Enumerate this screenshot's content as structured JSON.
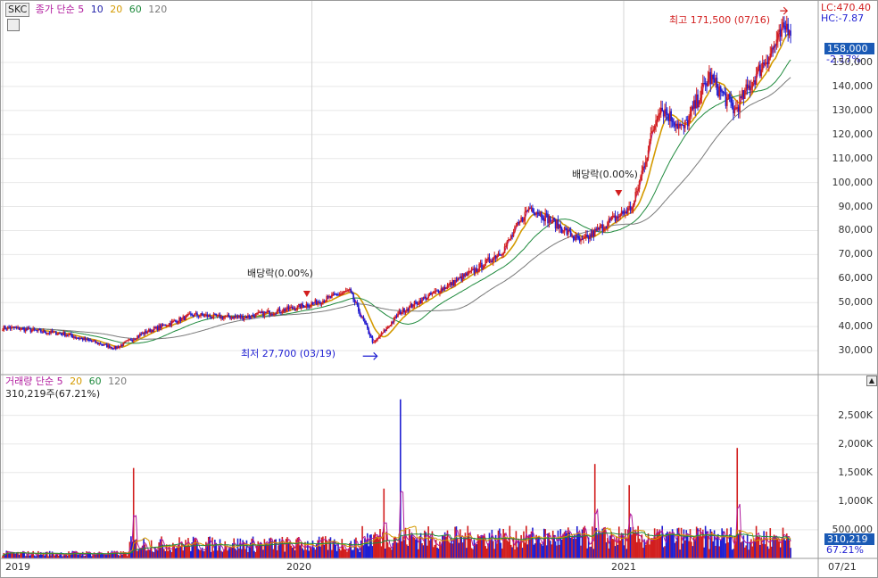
{
  "chart_data": [
    {
      "type": "candlestick",
      "ticker": "SKC",
      "ma_legend": {
        "prefix": "종가 단순",
        "periods": [
          "5",
          "10",
          "20",
          "60",
          "120"
        ],
        "colors": [
          "#b0199d",
          "#1f1fa8",
          "#d49a00",
          "#1f8a3d",
          "#7a7a7a"
        ]
      },
      "ylim": [
        20000,
        176000
      ],
      "y_ticks": [
        "150,000",
        "140,000",
        "130,000",
        "120,000",
        "110,000",
        "100,000",
        "90,000",
        "80,000",
        "70,000",
        "60,000",
        "50,000",
        "40,000",
        "30,000"
      ],
      "y_tick_values": [
        150000,
        140000,
        130000,
        120000,
        110000,
        100000,
        90000,
        80000,
        70000,
        60000,
        50000,
        40000,
        30000
      ],
      "x_labels": [
        "2019",
        "2020",
        "2021"
      ],
      "x_label_dates": [
        "2019-01-02",
        "2020-01-02",
        "2021-01-04"
      ],
      "last_date_label": "07/21",
      "close_series": {
        "dates": [
          "2019-01",
          "2019-02",
          "2019-03",
          "2019-04",
          "2019-05",
          "2019-06",
          "2019-07",
          "2019-08",
          "2019-09",
          "2019-10",
          "2019-11",
          "2019-12",
          "2020-01",
          "2020-02",
          "2020-03",
          "2020-04",
          "2020-05",
          "2020-06",
          "2020-07",
          "2020-08",
          "2020-09",
          "2020-10",
          "2020-11",
          "2020-12",
          "2021-01",
          "2021-02",
          "2021-03",
          "2021-04",
          "2021-05",
          "2021-06",
          "2021-07"
        ],
        "values": [
          39500,
          38000,
          37000,
          34000,
          31000,
          37000,
          41000,
          45000,
          44000,
          44000,
          46000,
          48000,
          51000,
          55000,
          33000,
          46000,
          52000,
          58000,
          64000,
          72000,
          90000,
          83000,
          75000,
          83000,
          90000,
          132000,
          122000,
          144000,
          130000,
          148000,
          165000
        ]
      },
      "annotations": {
        "high": {
          "text": "최고 171,500 (07/16)",
          "value": 171500,
          "date": "2021-07-16"
        },
        "low": {
          "text": "최저 27,700 (03/19)",
          "value": 27700,
          "date": "2020-03-19"
        },
        "dividends": [
          {
            "text": "배당락(0.00%)",
            "date": "2019-12-27"
          },
          {
            "text": "배당락(0.00%)",
            "date": "2020-12-29"
          }
        ]
      },
      "side_info": {
        "lc": "LC:470.40",
        "hc": "HC:-7.87",
        "last_price": "158,000",
        "change": "-2.17%"
      },
      "colors": {
        "up": "#d21f1f",
        "down": "#1f1fd2",
        "badge": "#1a5ab5",
        "annotation_red": "#d21f1f",
        "annotation_blue": "#1f1fd2"
      }
    },
    {
      "type": "bar",
      "legend": {
        "prefix": "거래량 단순",
        "periods": [
          "5",
          "20",
          "60",
          "120"
        ],
        "colors": [
          "#b0199d",
          "#d49a00",
          "#1f8a3d",
          "#7a7a7a"
        ]
      },
      "current_text": "310,219주(67.21%)",
      "ylim": [
        0,
        2900000
      ],
      "y_ticks": [
        "2,500K",
        "2,000K",
        "1,500K",
        "1,000K",
        "500,000"
      ],
      "y_tick_values": [
        2500000,
        2000000,
        1500000,
        1000000,
        500000
      ],
      "last_volume": "310,219",
      "last_ratio": "67.21%",
      "spikes": [
        {
          "date": "2019-06-05",
          "value": 1580000
        },
        {
          "date": "2020-04-16",
          "value": 2780000
        },
        {
          "date": "2020-03-27",
          "value": 1220000
        },
        {
          "date": "2020-12-01",
          "value": 1650000
        },
        {
          "date": "2021-05-18",
          "value": 1930000
        },
        {
          "date": "2021-01-11",
          "value": 1280000
        }
      ]
    }
  ]
}
